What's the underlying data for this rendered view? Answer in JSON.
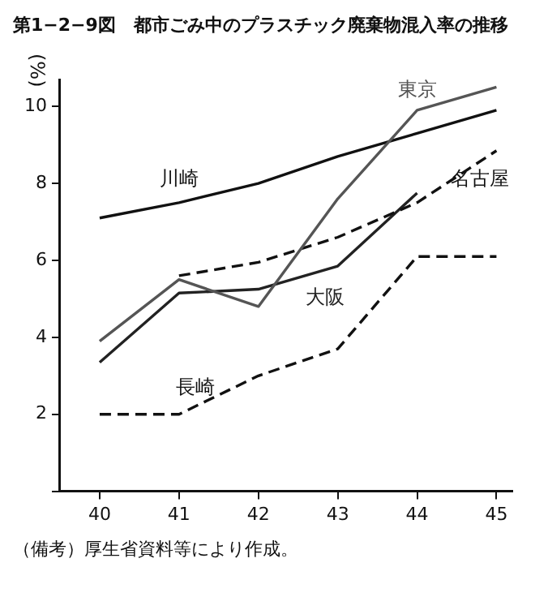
{
  "chart_data": {
    "type": "line",
    "title": "第1−2−9図　都市ごみ中のプラスチック廃棄物混入率の推移",
    "ylabel": "(%)",
    "x": [
      40,
      41,
      42,
      43,
      44,
      45
    ],
    "xlim": [
      39.5,
      45.2
    ],
    "xticks": [
      40,
      41,
      42,
      43,
      44,
      45
    ],
    "ylim": [
      0,
      10.7
    ],
    "yticks": [
      {
        "value": 0,
        "label": null
      },
      2,
      4,
      6,
      8,
      10
    ],
    "grid": false,
    "legend": false,
    "marker": "none",
    "series": [
      {
        "name": "東京",
        "color": "#555555",
        "line_style": "solid",
        "values": [
          3.9,
          5.5,
          4.8,
          7.6,
          9.9,
          10.5
        ]
      },
      {
        "name": "川崎",
        "color": "#111111",
        "line_style": "solid",
        "values": [
          7.1,
          7.5,
          8.0,
          8.7,
          9.3,
          9.9
        ]
      },
      {
        "name": "名古屋",
        "color": "#111111",
        "line_style": "dashed",
        "values": [
          null,
          5.6,
          5.95,
          6.6,
          7.5,
          8.85
        ]
      },
      {
        "name": "大阪",
        "color": "#222222",
        "line_style": "solid",
        "values": [
          3.35,
          5.15,
          5.25,
          5.85,
          7.75,
          null
        ]
      },
      {
        "name": "長崎",
        "color": "#111111",
        "line_style": "dashed",
        "values": [
          2.0,
          2.0,
          3.0,
          3.7,
          6.1,
          6.1
        ]
      }
    ],
    "annotations": [
      "（備考）厚生省資料等により作成。"
    ]
  }
}
